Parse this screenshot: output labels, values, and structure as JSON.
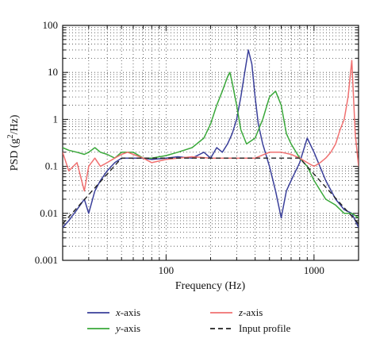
{
  "chart_data": {
    "type": "line",
    "title": "",
    "xlabel": "Frequency (Hz)",
    "ylabel": "PSD (g2/Hz)",
    "ylabel_parts": {
      "prefix": "PSD (g",
      "superscript": "2",
      "suffix": "/Hz)"
    },
    "xscale": "log",
    "yscale": "log",
    "xlim": [
      20,
      2000
    ],
    "ylim": [
      0.001,
      100
    ],
    "x_tick_labels": [
      {
        "value": 100,
        "label": "100"
      },
      {
        "value": 1000,
        "label": "1000"
      }
    ],
    "y_tick_labels": [
      {
        "value": 0.001,
        "label": "0.001"
      },
      {
        "value": 0.01,
        "label": "0.01"
      },
      {
        "value": 0.1,
        "label": "0.1"
      },
      {
        "value": 1,
        "label": "1"
      },
      {
        "value": 10,
        "label": "10"
      },
      {
        "value": 100,
        "label": "100"
      }
    ],
    "grid": true,
    "legend_position": "bottom",
    "series": [
      {
        "name": "x-axis",
        "axis_letter": "x",
        "axis_suffix": "-axis",
        "color": "#3a3f9a",
        "style": "solid",
        "x": [
          20,
          22,
          25,
          28,
          30,
          33,
          36,
          40,
          45,
          50,
          55,
          60,
          70,
          80,
          100,
          120,
          150,
          180,
          200,
          220,
          240,
          260,
          280,
          300,
          320,
          340,
          360,
          380,
          400,
          420,
          450,
          500,
          550,
          600,
          650,
          700,
          800,
          900,
          1000,
          1200,
          1400,
          1600,
          1800,
          2000
        ],
        "y": [
          0.005,
          0.007,
          0.012,
          0.02,
          0.01,
          0.03,
          0.05,
          0.08,
          0.12,
          0.15,
          0.15,
          0.15,
          0.15,
          0.14,
          0.15,
          0.16,
          0.15,
          0.2,
          0.15,
          0.25,
          0.2,
          0.3,
          0.5,
          1.0,
          3.0,
          10,
          30,
          15,
          3.0,
          0.8,
          0.3,
          0.1,
          0.03,
          0.008,
          0.03,
          0.05,
          0.12,
          0.4,
          0.2,
          0.05,
          0.02,
          0.012,
          0.01,
          0.005
        ]
      },
      {
        "name": "y-axis",
        "axis_letter": "y",
        "axis_suffix": "-axis",
        "color": "#3aa83a",
        "style": "solid",
        "x": [
          20,
          22,
          25,
          28,
          30,
          33,
          36,
          40,
          45,
          50,
          55,
          60,
          70,
          80,
          100,
          120,
          150,
          180,
          200,
          220,
          240,
          260,
          270,
          280,
          300,
          320,
          350,
          400,
          450,
          500,
          550,
          600,
          650,
          700,
          800,
          900,
          1000,
          1200,
          1400,
          1600,
          1800,
          2000
        ],
        "y": [
          0.25,
          0.22,
          0.2,
          0.18,
          0.2,
          0.25,
          0.2,
          0.18,
          0.15,
          0.2,
          0.2,
          0.2,
          0.15,
          0.15,
          0.17,
          0.2,
          0.25,
          0.4,
          0.8,
          2.0,
          4.0,
          8.0,
          10,
          6.0,
          2.0,
          0.6,
          0.3,
          0.4,
          1.0,
          3.0,
          4.0,
          2.0,
          0.5,
          0.3,
          0.15,
          0.1,
          0.05,
          0.02,
          0.015,
          0.01,
          0.01,
          0.008
        ]
      },
      {
        "name": "z-axis",
        "axis_letter": "z",
        "axis_suffix": "-axis",
        "color": "#f07070",
        "style": "solid",
        "x": [
          20,
          22,
          25,
          28,
          30,
          33,
          36,
          40,
          45,
          50,
          55,
          60,
          70,
          80,
          100,
          120,
          150,
          200,
          250,
          300,
          400,
          500,
          600,
          700,
          800,
          900,
          1000,
          1100,
          1200,
          1300,
          1400,
          1500,
          1600,
          1700,
          1800,
          1900,
          2000
        ],
        "y": [
          0.2,
          0.08,
          0.12,
          0.03,
          0.1,
          0.15,
          0.1,
          0.12,
          0.15,
          0.18,
          0.2,
          0.18,
          0.15,
          0.12,
          0.14,
          0.15,
          0.16,
          0.15,
          0.15,
          0.15,
          0.15,
          0.2,
          0.2,
          0.18,
          0.15,
          0.12,
          0.1,
          0.12,
          0.15,
          0.2,
          0.3,
          0.6,
          1.0,
          3.0,
          18,
          0.5,
          0.1
        ]
      },
      {
        "name": "Input profile",
        "axis_letter": "",
        "axis_suffix": "Input profile",
        "color": "#222222",
        "style": "dashed",
        "x": [
          20,
          50,
          800,
          2000
        ],
        "y": [
          0.006,
          0.15,
          0.15,
          0.006
        ]
      }
    ]
  }
}
